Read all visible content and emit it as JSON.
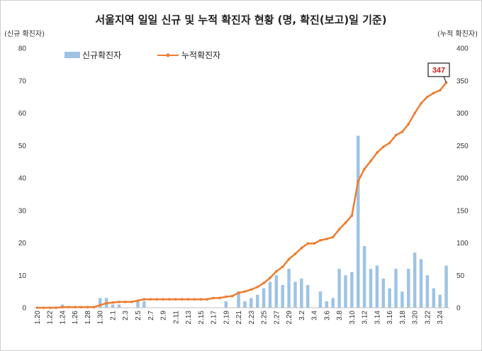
{
  "chart_data": {
    "type": "bar+line",
    "title": "서울지역 일일 신규 및 누적 확진자 현황 (명, 확진(보고)일 기준)",
    "ylabel_left": "(신규 확진자)",
    "ylabel_right": "(누적 확진자)",
    "ylim_left": [
      0,
      80
    ],
    "ylim_right": [
      0,
      400
    ],
    "yticks_left": [
      "0",
      "10",
      "20",
      "30",
      "40",
      "50",
      "60",
      "70",
      "80"
    ],
    "yticks_right": [
      "0",
      "50",
      "100",
      "150",
      "200",
      "250",
      "300",
      "350",
      "400"
    ],
    "grid": false,
    "legend_position": "top-left",
    "categories": [
      "1.20",
      "1.21",
      "1.22",
      "1.23",
      "1.24",
      "1.25",
      "1.26",
      "1.27",
      "1.28",
      "1.29",
      "1.30",
      "1.31",
      "2.1",
      "2.2",
      "2.3",
      "2.4",
      "2.5",
      "2.6",
      "2.7",
      "2.8",
      "2.9",
      "2.10",
      "2.11",
      "2.12",
      "2.13",
      "2.14",
      "2.15",
      "2.16",
      "2.17",
      "2.18",
      "2.19",
      "2.20",
      "2.21",
      "2.22",
      "2.23",
      "2.24",
      "2.25",
      "2.26",
      "2.27",
      "2.28",
      "2.29",
      "3.1",
      "3.2",
      "3.3",
      "3.4",
      "3.5",
      "3.6",
      "3.7",
      "3.8",
      "3.9",
      "3.10",
      "3.11",
      "3.12",
      "3.13",
      "3.14",
      "3.15",
      "3.16",
      "3.17",
      "3.18",
      "3.19",
      "3.20",
      "3.21",
      "3.22",
      "3.23",
      "3.24",
      "3.25"
    ],
    "tick_labels": [
      "1.20",
      "1.22",
      "1.24",
      "1.26",
      "1.28",
      "1.30",
      "2.1",
      "2.3",
      "2.5",
      "2.7",
      "2.9",
      "2.11",
      "2.13",
      "2.15",
      "2.17",
      "2.19",
      "2.21",
      "2.23",
      "2.25",
      "2.27",
      "2.29",
      "3.2",
      "3.4",
      "3.6",
      "3.8",
      "3.10",
      "3.12",
      "3.14",
      "3.16",
      "3.18",
      "3.20",
      "3.22",
      "3.24"
    ],
    "series": [
      {
        "name": "신규확진자",
        "kind": "bar",
        "axis": "left",
        "color": "#9dc3e6",
        "values": [
          0,
          0,
          0,
          0,
          1,
          0,
          0,
          0,
          0,
          0,
          3,
          3,
          1,
          1,
          0,
          0,
          2,
          2,
          0,
          0,
          0,
          0,
          0,
          0,
          0,
          0,
          0,
          0,
          0,
          0,
          2,
          0,
          5,
          2,
          3,
          4,
          6,
          8,
          10,
          7,
          12,
          8,
          9,
          7,
          0,
          5,
          2,
          3,
          12,
          10,
          11,
          53,
          19,
          12,
          13,
          9,
          6,
          12,
          5,
          12,
          17,
          15,
          10,
          6,
          4,
          13
        ]
      },
      {
        "name": "누적확진자",
        "kind": "line",
        "axis": "right",
        "color": "#ed7d31",
        "values": [
          0,
          0,
          0,
          0,
          1,
          1,
          1,
          1,
          1,
          1,
          4,
          7,
          8,
          9,
          9,
          9,
          11,
          13,
          13,
          13,
          13,
          13,
          13,
          13,
          13,
          13,
          13,
          13,
          15,
          15,
          17,
          18,
          23,
          25,
          28,
          32,
          38,
          46,
          56,
          63,
          75,
          83,
          92,
          99,
          99,
          104,
          106,
          109,
          121,
          131,
          142,
          195,
          214,
          226,
          239,
          248,
          254,
          266,
          271,
          283,
          300,
          315,
          325,
          331,
          335,
          347
        ]
      }
    ],
    "annotation": {
      "label": "347",
      "index": 65,
      "border_color": "#202020",
      "text_color": "#d0201b"
    }
  }
}
